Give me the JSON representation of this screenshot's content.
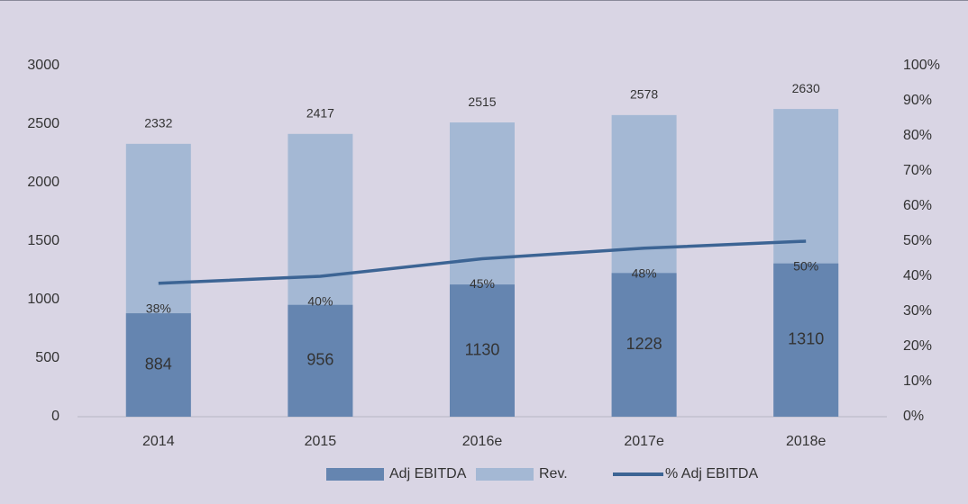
{
  "chart_data": {
    "type": "bar",
    "categories": [
      "2014",
      "2015",
      "2016e",
      "2017e",
      "2018e"
    ],
    "series": [
      {
        "name": "Adj EBITDA",
        "color": "#6585b0",
        "values": [
          884,
          956,
          1130,
          1228,
          1310
        ]
      },
      {
        "name": "Rev.",
        "color": "#a4b8d4",
        "values": [
          2332,
          2417,
          2515,
          2578,
          2630
        ]
      },
      {
        "name": "% Adj EBITDA",
        "type": "line",
        "axis": "y2",
        "color": "#3c6494",
        "values": [
          38,
          40,
          45,
          48,
          50
        ],
        "value_labels": [
          "38%",
          "40%",
          "45%",
          "48%",
          "50%"
        ]
      }
    ],
    "ylim": [
      0,
      3000
    ],
    "yticks": [
      0,
      500,
      1000,
      1500,
      2000,
      2500,
      3000
    ],
    "y2lim": [
      0,
      100
    ],
    "y2ticks": [
      {
        "value": 0,
        "label": "0%"
      },
      {
        "value": 10,
        "label": "10%"
      },
      {
        "value": 20,
        "label": "20%"
      },
      {
        "value": 30,
        "label": "30%"
      },
      {
        "value": 40,
        "label": "40%"
      },
      {
        "value": 50,
        "label": "50%"
      },
      {
        "value": 60,
        "label": "60%"
      },
      {
        "value": 70,
        "label": "70%"
      },
      {
        "value": 80,
        "label": "80%"
      },
      {
        "value": 90,
        "label": "90%"
      },
      {
        "value": 100,
        "label": "100%"
      }
    ],
    "legend": "bottom"
  }
}
